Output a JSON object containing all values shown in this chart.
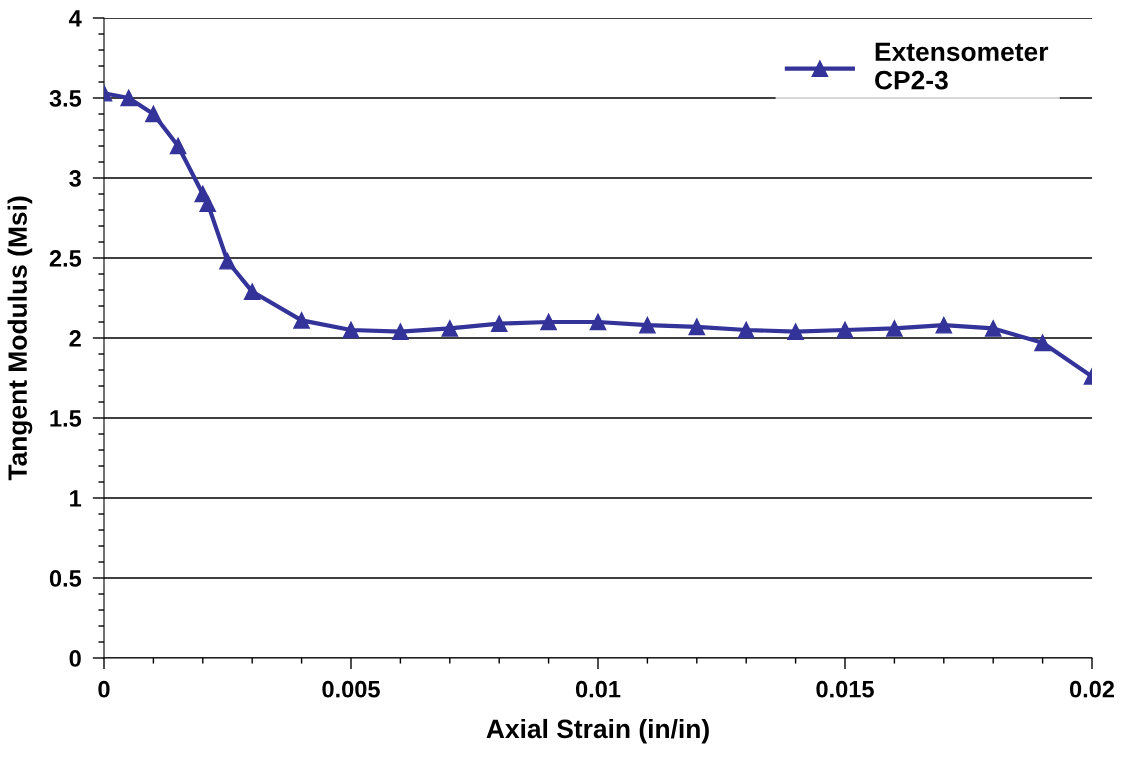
{
  "chart_data": {
    "type": "line",
    "xlabel": "Axial Strain (in/in)",
    "ylabel": "Tangent Modulus (Msi)",
    "xlim": [
      0,
      0.02
    ],
    "xticks": [
      {
        "value": 0,
        "label": "0"
      },
      {
        "value": 0.005,
        "label": "0.005"
      },
      {
        "value": 0.01,
        "label": "0.01"
      },
      {
        "value": 0.015,
        "label": "0.015"
      },
      {
        "value": 0.02,
        "label": "0.02"
      }
    ],
    "ylim": [
      0,
      4
    ],
    "yticks": [
      {
        "value": 0,
        "label": "0"
      },
      {
        "value": 0.5,
        "label": "0.5"
      },
      {
        "value": 1,
        "label": "1"
      },
      {
        "value": 1.5,
        "label": "1.5"
      },
      {
        "value": 2,
        "label": "2"
      },
      {
        "value": 2.5,
        "label": "2.5"
      },
      {
        "value": 3,
        "label": "3"
      },
      {
        "value": 3.5,
        "label": "3.5"
      },
      {
        "value": 4,
        "label": "4"
      }
    ],
    "grid": "y",
    "legend": "top right",
    "marker": "triangle",
    "line_style": "solid",
    "series": [
      {
        "name": "Extensometer\nCP2-3",
        "color": "#333399",
        "x": [
          0,
          0.0005,
          0.001,
          0.0015,
          0.002,
          0.0021,
          0.0025,
          0.003,
          0.004,
          0.005,
          0.006,
          0.007,
          0.008,
          0.009,
          0.01,
          0.011,
          0.012,
          0.013,
          0.014,
          0.015,
          0.016,
          0.017,
          0.018,
          0.019,
          0.02
        ],
        "values": [
          3.53,
          3.5,
          3.4,
          3.2,
          2.9,
          2.84,
          2.48,
          2.29,
          2.11,
          2.05,
          2.04,
          2.06,
          2.09,
          2.1,
          2.1,
          2.08,
          2.07,
          2.05,
          2.04,
          2.05,
          2.06,
          2.08,
          2.06,
          1.97,
          1.76
        ]
      }
    ]
  }
}
